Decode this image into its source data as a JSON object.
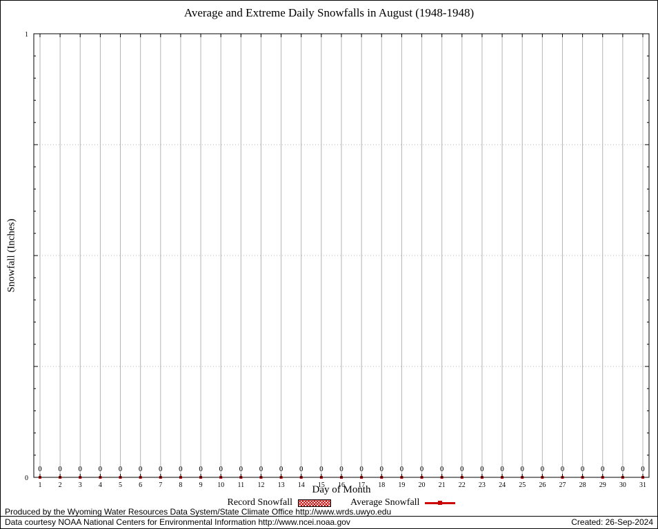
{
  "chart_data": {
    "type": "line",
    "title": "Average and Extreme Daily Snowfalls in August (1948-1948)",
    "xlabel": "Day of Month",
    "ylabel": "Snowfall (Inches)",
    "ylim": [
      0,
      1
    ],
    "categories": [
      1,
      2,
      3,
      4,
      5,
      6,
      7,
      8,
      9,
      10,
      11,
      12,
      13,
      14,
      15,
      16,
      17,
      18,
      19,
      20,
      21,
      22,
      23,
      24,
      25,
      26,
      27,
      28,
      29,
      30,
      31
    ],
    "series": [
      {
        "name": "Record Snowfall",
        "style": "hatched-bar",
        "values": [
          0,
          0,
          0,
          0,
          0,
          0,
          0,
          0,
          0,
          0,
          0,
          0,
          0,
          0,
          0,
          0,
          0,
          0,
          0,
          0,
          0,
          0,
          0,
          0,
          0,
          0,
          0,
          0,
          0,
          0,
          0
        ]
      },
      {
        "name": "Average Snowfall",
        "style": "red-line-points",
        "values": [
          0,
          0,
          0,
          0,
          0,
          0,
          0,
          0,
          0,
          0,
          0,
          0,
          0,
          0,
          0,
          0,
          0,
          0,
          0,
          0,
          0,
          0,
          0,
          0,
          0,
          0,
          0,
          0,
          0,
          0,
          0
        ]
      }
    ],
    "point_labels": [
      "0",
      "0",
      "0",
      "0",
      "0",
      "0",
      "0",
      "0",
      "0",
      "0",
      "0",
      "0",
      "0",
      "0",
      "0",
      "0",
      "0",
      "0",
      "0",
      "0",
      "0",
      "0",
      "0",
      "0",
      "0",
      "0",
      "0",
      "0",
      "0",
      "0",
      "0"
    ],
    "y_axis_labels": [
      {
        "value": 0,
        "label": "0"
      },
      {
        "value": 1,
        "label": "1"
      }
    ],
    "grid": {
      "vertical": "solid-per-day",
      "h_dotted_at": [
        0.25,
        0.5,
        0.75
      ]
    },
    "legend_position": "bottom-center"
  },
  "colors": {
    "series_red": "#cc0000",
    "grid": "#b3b3b3",
    "axis": "#000000"
  },
  "footer": {
    "line1": "Produced by the Wyoming Water Resources Data System/State Climate Office http://www.wrds.uwyo.edu",
    "line2": "Data courtesy NOAA National Centers for Environmental Information http://www.ncei.noaa.gov",
    "created": "Created: 26-Sep-2024"
  }
}
